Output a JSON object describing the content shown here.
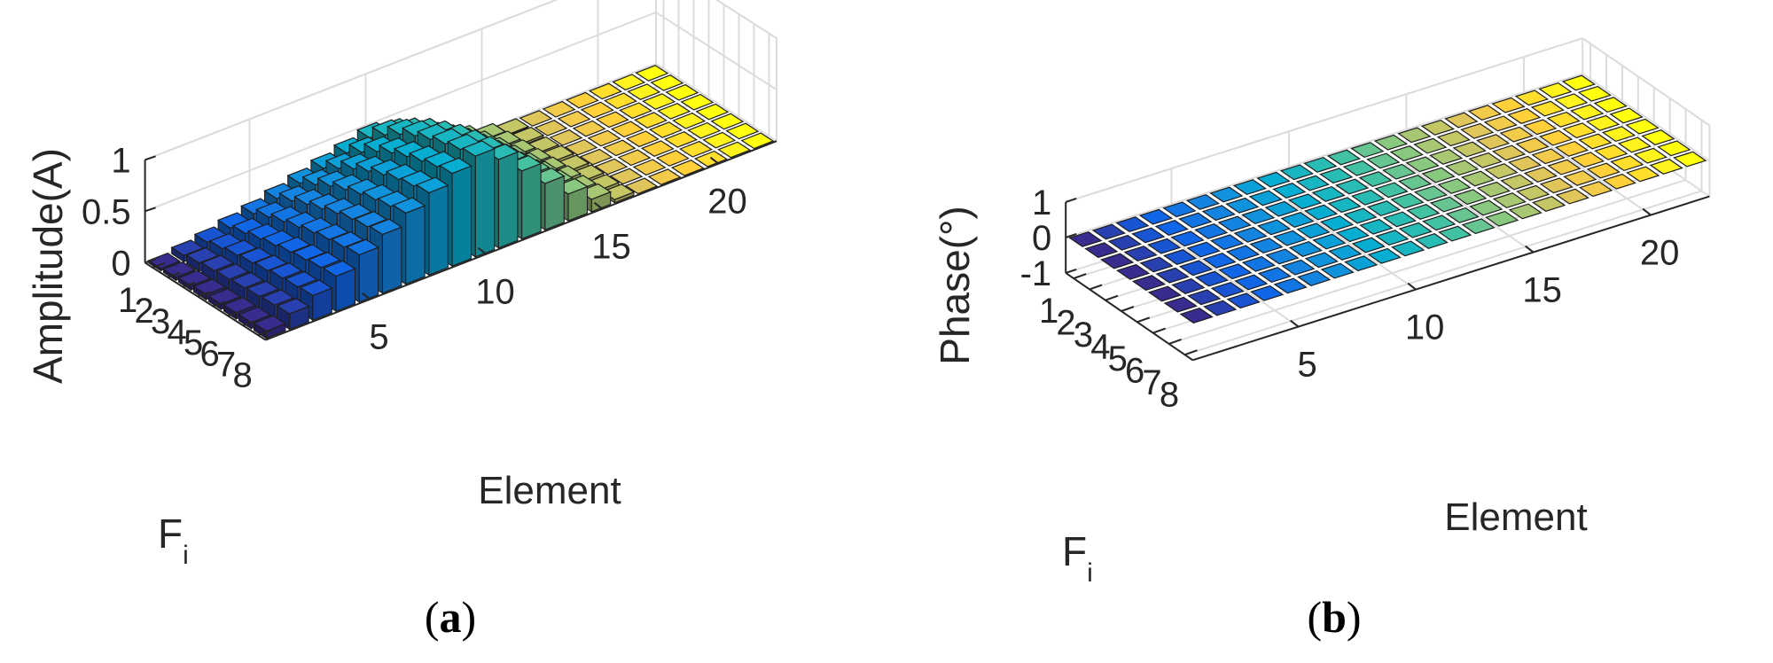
{
  "chart_data": [
    {
      "id": "a",
      "type": "bar3d",
      "caption_letter": "a",
      "zlabel": "Amplitude(A)",
      "xlabel": "Element",
      "ylabel_main": "F",
      "ylabel_sub": "i",
      "x_ticks": [
        "5",
        "10",
        "15",
        "20"
      ],
      "x_tick_values": [
        5,
        10,
        15,
        20
      ],
      "y_ticks": [
        "1",
        "2",
        "3",
        "4",
        "5",
        "6",
        "7",
        "8"
      ],
      "z_ticks": [
        "0",
        "0.5",
        "1"
      ],
      "z_tick_values": [
        0,
        0.5,
        1
      ],
      "zlim": [
        0,
        1
      ],
      "n_elements": 22,
      "n_fi": 8,
      "grid": true,
      "values_by_fi": [
        [
          0.02,
          0.06,
          0.1,
          0.15,
          0.2,
          0.26,
          0.32,
          0.38,
          0.44,
          0.5,
          0.45,
          0.34,
          0.22,
          0.12,
          0.05,
          0.01,
          0.0,
          0.0,
          0.0,
          0.0,
          0.0,
          0.0
        ],
        [
          0.03,
          0.08,
          0.13,
          0.19,
          0.26,
          0.33,
          0.4,
          0.47,
          0.54,
          0.62,
          0.55,
          0.42,
          0.28,
          0.16,
          0.07,
          0.02,
          0.0,
          0.0,
          0.0,
          0.0,
          0.0,
          0.0
        ],
        [
          0.04,
          0.1,
          0.16,
          0.23,
          0.31,
          0.39,
          0.48,
          0.56,
          0.64,
          0.72,
          0.64,
          0.49,
          0.33,
          0.19,
          0.08,
          0.02,
          0.0,
          0.0,
          0.0,
          0.0,
          0.0,
          0.0
        ],
        [
          0.05,
          0.11,
          0.18,
          0.26,
          0.35,
          0.44,
          0.54,
          0.63,
          0.72,
          0.8,
          0.71,
          0.55,
          0.37,
          0.21,
          0.09,
          0.03,
          0.0,
          0.0,
          0.0,
          0.0,
          0.0,
          0.0
        ],
        [
          0.05,
          0.12,
          0.2,
          0.29,
          0.39,
          0.49,
          0.59,
          0.69,
          0.78,
          0.86,
          0.77,
          0.59,
          0.4,
          0.23,
          0.1,
          0.03,
          0.0,
          0.0,
          0.0,
          0.0,
          0.0,
          0.0
        ],
        [
          0.06,
          0.13,
          0.22,
          0.31,
          0.42,
          0.53,
          0.63,
          0.74,
          0.83,
          0.91,
          0.81,
          0.62,
          0.42,
          0.24,
          0.11,
          0.03,
          0.0,
          0.0,
          0.0,
          0.0,
          0.0,
          0.0
        ],
        [
          0.06,
          0.14,
          0.23,
          0.33,
          0.44,
          0.55,
          0.66,
          0.77,
          0.87,
          0.95,
          0.84,
          0.64,
          0.44,
          0.25,
          0.11,
          0.03,
          0.0,
          0.0,
          0.0,
          0.0,
          0.0,
          0.0
        ],
        [
          0.07,
          0.15,
          0.24,
          0.34,
          0.46,
          0.57,
          0.69,
          0.8,
          0.9,
          0.98,
          0.86,
          0.66,
          0.45,
          0.26,
          0.12,
          0.03,
          0.0,
          0.0,
          0.0,
          0.0,
          0.0,
          0.0
        ]
      ]
    },
    {
      "id": "b",
      "type": "bar3d",
      "caption_letter": "b",
      "zlabel": "Phase(°)",
      "xlabel": "Element",
      "ylabel_main": "F",
      "ylabel_sub": "i",
      "x_ticks": [
        "5",
        "10",
        "15",
        "20"
      ],
      "x_tick_values": [
        5,
        10,
        15,
        20
      ],
      "y_ticks": [
        "1",
        "2",
        "3",
        "4",
        "5",
        "6",
        "7",
        "8"
      ],
      "z_ticks": [
        "-1",
        "0",
        "1"
      ],
      "z_tick_values": [
        -1,
        0,
        1
      ],
      "zlim": [
        -1,
        1
      ],
      "n_elements": 22,
      "n_fi": 8,
      "grid": true,
      "all_values": 0
    }
  ],
  "colors": {
    "parula": [
      "#352a87",
      "#0f5cdd",
      "#1481d6",
      "#06a4ca",
      "#2eb7a4",
      "#87bf77",
      "#d1bb59",
      "#fec832",
      "#f9fb0e"
    ],
    "axis": "#262626",
    "grid": "#dcdcdc",
    "edge": "#1e1e1e"
  }
}
